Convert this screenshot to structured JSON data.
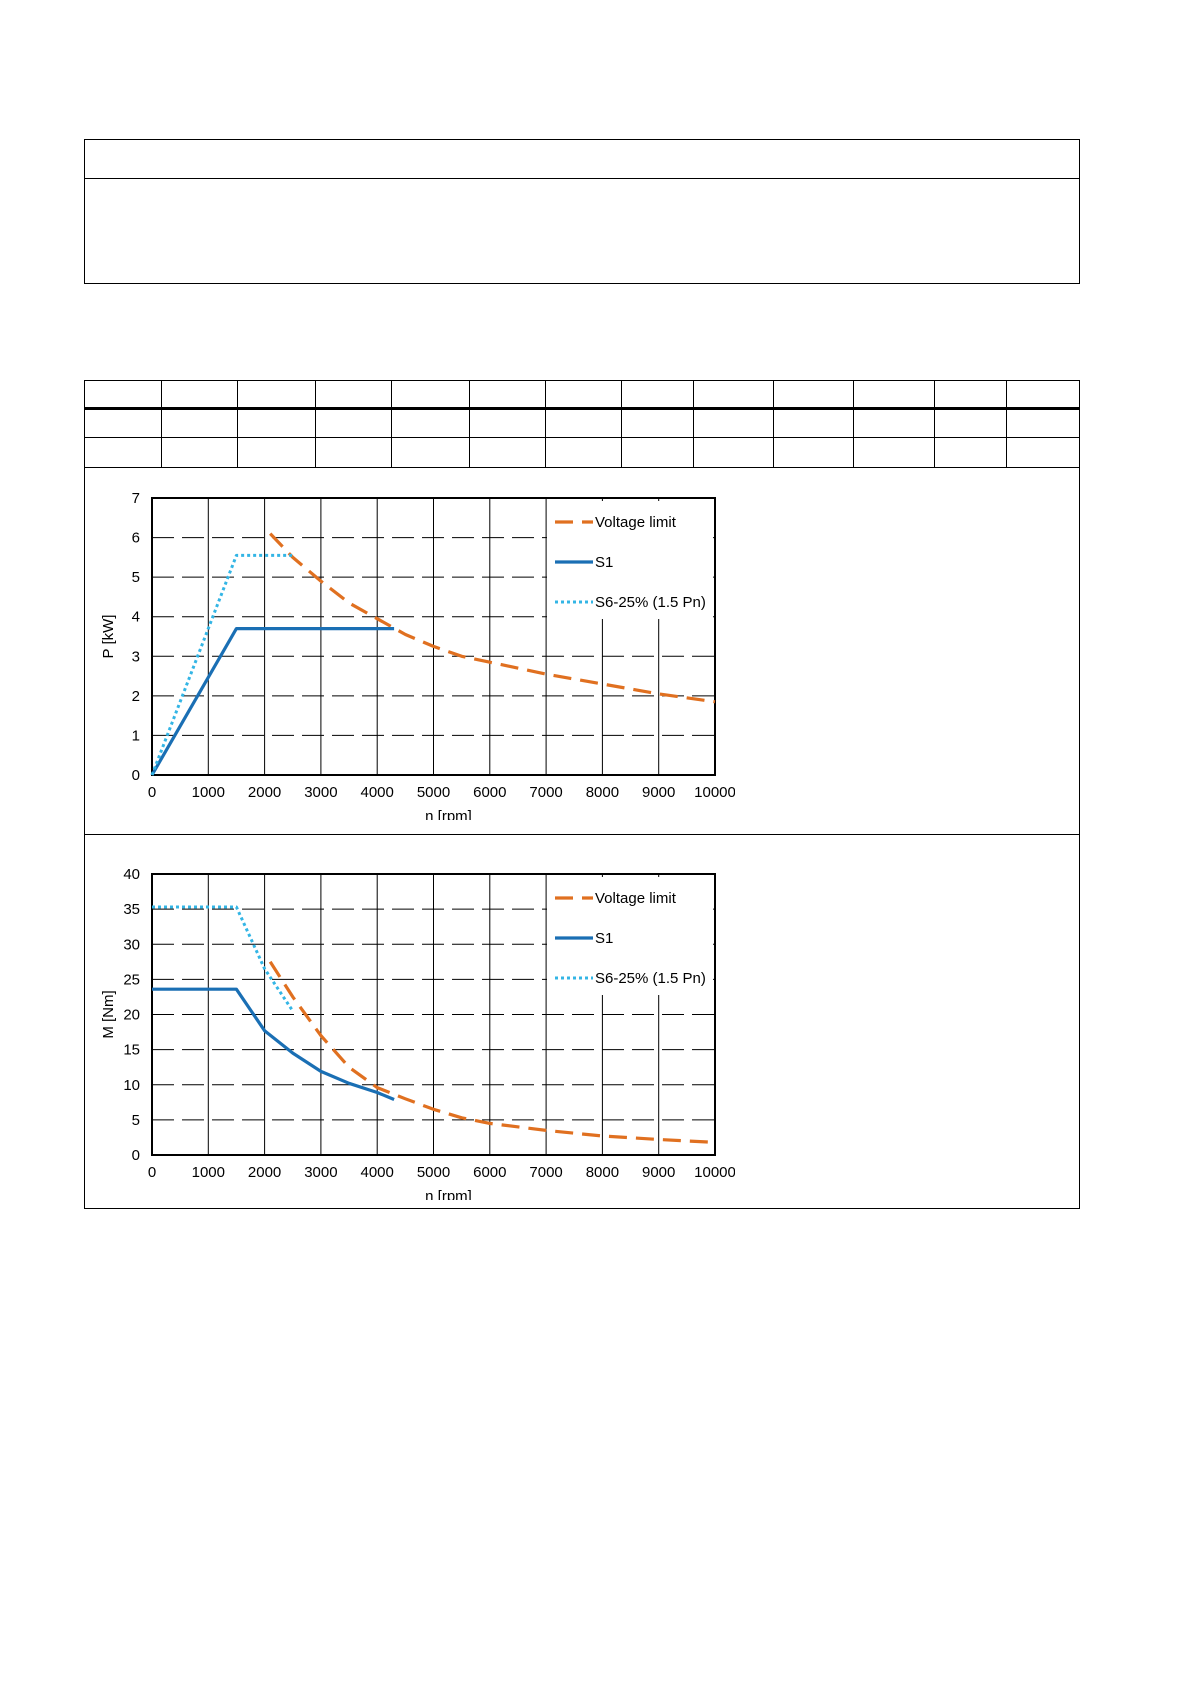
{
  "chart_data": [
    {
      "type": "line",
      "xlabel": "n [rpm]",
      "ylabel": "P [kW]",
      "xlim": [
        0,
        10000
      ],
      "ylim": [
        0,
        7
      ],
      "xticks": [
        0,
        1000,
        2000,
        3000,
        4000,
        5000,
        6000,
        7000,
        8000,
        9000,
        10000
      ],
      "yticks": [
        0,
        1,
        2,
        3,
        4,
        5,
        6,
        7
      ],
      "grid": true,
      "legend_position": "top-right",
      "series": [
        {
          "name": "Voltage limit",
          "color": "#E07020",
          "style": "dashed",
          "x": [
            2100,
            2500,
            3000,
            3500,
            4000,
            4500,
            5000,
            5500,
            6000,
            7000,
            8000,
            9000,
            10000
          ],
          "y": [
            6.1,
            5.5,
            4.9,
            4.35,
            3.95,
            3.55,
            3.25,
            3.0,
            2.85,
            2.55,
            2.3,
            2.05,
            1.85
          ]
        },
        {
          "name": "S1",
          "color": "#1A6FB4",
          "style": "solid",
          "x": [
            0,
            1500,
            4300
          ],
          "y": [
            0,
            3.7,
            3.7
          ]
        },
        {
          "name": "S6-25% (1.5 Pn)",
          "color": "#33B5E5",
          "style": "dotted",
          "x": [
            0,
            1500,
            2500
          ],
          "y": [
            0,
            5.55,
            5.55
          ]
        }
      ]
    },
    {
      "type": "line",
      "xlabel": "n [rpm]",
      "ylabel": "M [Nm]",
      "xlim": [
        0,
        10000
      ],
      "ylim": [
        0,
        40
      ],
      "xticks": [
        0,
        1000,
        2000,
        3000,
        4000,
        5000,
        6000,
        7000,
        8000,
        9000,
        10000
      ],
      "yticks": [
        0,
        5,
        10,
        15,
        20,
        25,
        30,
        35,
        40
      ],
      "grid": true,
      "legend_position": "top-right",
      "series": [
        {
          "name": "Voltage limit",
          "color": "#E07020",
          "style": "dashed",
          "x": [
            2100,
            2500,
            3000,
            3500,
            4000,
            4500,
            5000,
            5500,
            6000,
            7000,
            8000,
            9000,
            10000
          ],
          "y": [
            27.5,
            22.5,
            17.0,
            12.5,
            9.6,
            8.0,
            6.5,
            5.3,
            4.5,
            3.5,
            2.7,
            2.2,
            1.8
          ]
        },
        {
          "name": "S1",
          "color": "#1A6FB4",
          "style": "solid",
          "x": [
            0,
            1500,
            2000,
            2500,
            3000,
            3500,
            4000,
            4300
          ],
          "y": [
            23.6,
            23.6,
            17.7,
            14.5,
            11.9,
            10.2,
            8.9,
            7.9
          ]
        },
        {
          "name": "S6-25% (1.5 Pn)",
          "color": "#33B5E5",
          "style": "dotted",
          "x": [
            0,
            1500,
            2000,
            2500
          ],
          "y": [
            35.3,
            35.3,
            26.5,
            20.5
          ]
        }
      ]
    }
  ]
}
